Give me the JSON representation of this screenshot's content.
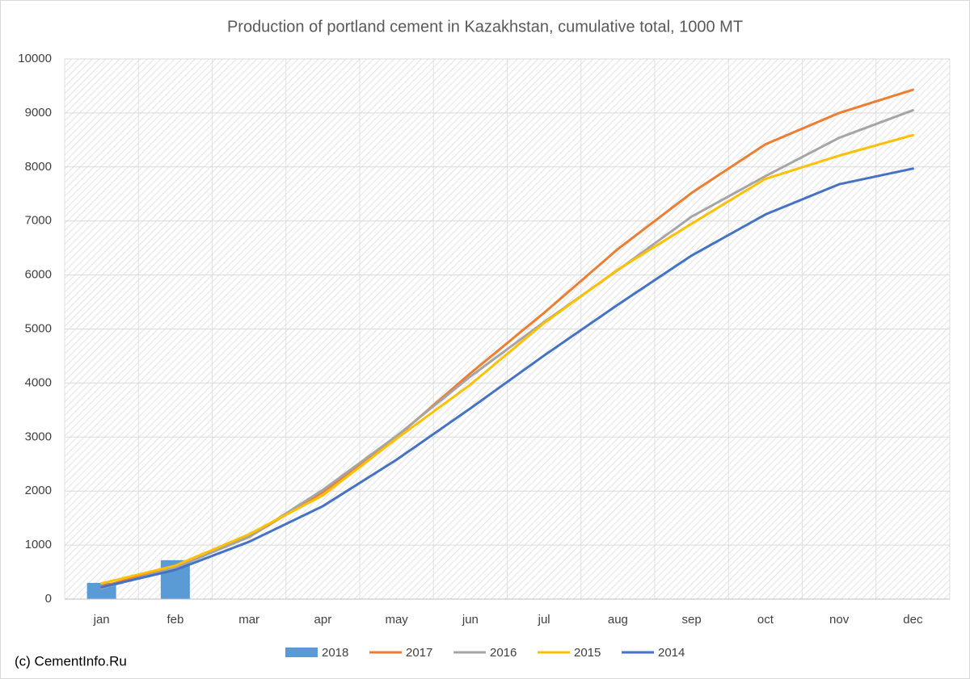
{
  "chart_data": {
    "type": "combo",
    "title": "Production of portland cement in Kazakhstan, cumulative total, 1000 MT",
    "annotation": "(c) CementInfo.Ru",
    "categories": [
      "jan",
      "feb",
      "mar",
      "apr",
      "may",
      "jun",
      "jul",
      "aug",
      "sep",
      "oct",
      "nov",
      "dec"
    ],
    "series": [
      {
        "name": "2018",
        "type": "bar",
        "color": "#5b9bd5",
        "values": [
          300,
          720,
          null,
          null,
          null,
          null,
          null,
          null,
          null,
          null,
          null,
          null
        ]
      },
      {
        "name": "2017",
        "type": "line",
        "color": "#ed7d31",
        "values": [
          230,
          600,
          1150,
          1980,
          3000,
          4180,
          5300,
          6480,
          7520,
          8420,
          9000,
          9430
        ]
      },
      {
        "name": "2016",
        "type": "line",
        "color": "#a5a5a5",
        "values": [
          200,
          580,
          1150,
          2020,
          3020,
          4120,
          5130,
          6090,
          7080,
          7830,
          8540,
          9050
        ]
      },
      {
        "name": "2015",
        "type": "line",
        "color": "#ffc000",
        "values": [
          290,
          620,
          1200,
          1920,
          2970,
          3970,
          5110,
          6100,
          6950,
          7780,
          8210,
          8590
        ]
      },
      {
        "name": "2014",
        "type": "line",
        "color": "#4472c4",
        "values": [
          220,
          540,
          1060,
          1720,
          2580,
          3530,
          4510,
          5450,
          6360,
          7120,
          7680,
          7970
        ]
      }
    ],
    "ylim": [
      0,
      10000
    ],
    "yticks": [
      0,
      1000,
      2000,
      3000,
      4000,
      5000,
      6000,
      7000,
      8000,
      9000,
      10000
    ],
    "grid": true,
    "legend": "bottom"
  }
}
